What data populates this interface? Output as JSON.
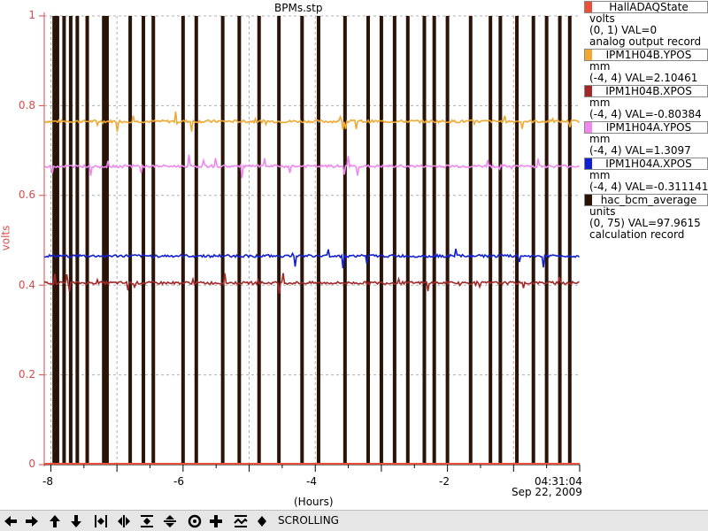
{
  "window": {
    "title": "BPMs.stp"
  },
  "chart_data": {
    "type": "line",
    "title": "BPMs.stp",
    "ylabel": "volts",
    "xlabel": "(Hours)",
    "ylim": [
      0,
      1
    ],
    "xlim": [
      -8.1,
      0
    ],
    "yticks": [
      "0",
      "0.2",
      "0.4",
      "0.6",
      "0.8",
      "1"
    ],
    "xticks": [
      "-8",
      "-6",
      "-4",
      "-2"
    ],
    "time_label": "04:31:04",
    "date_label": "Sep 22, 2009",
    "grid": true,
    "series": [
      {
        "name": "HallADAQState",
        "color": "#e8503a",
        "level": 0.0
      },
      {
        "name": "IPM1H04B.YPOS",
        "color": "#f0a830",
        "level": 0.765
      },
      {
        "name": "IPM1H04B.XPOS",
        "color": "#a02828",
        "level": 0.405
      },
      {
        "name": "IPM1H04A.YPOS",
        "color": "#ee88ee",
        "level": 0.665
      },
      {
        "name": "IPM1H04A.XPOS",
        "color": "#1020d0",
        "level": 0.465
      },
      {
        "name": "hac_bcm_average",
        "color": "#2a1408",
        "spike_x_hours": [
          -7.95,
          -7.9,
          -7.8,
          -7.7,
          -7.6,
          -7.45,
          -7.2,
          -7.15,
          -6.8,
          -6.6,
          -6.45,
          -6.0,
          -5.8,
          -5.4,
          -5.15,
          -4.85,
          -4.55,
          -4.2,
          -3.95,
          -3.55,
          -3.2,
          -3.0,
          -2.8,
          -2.6,
          -2.35,
          -2.2,
          -2.0,
          -1.65,
          -1.35,
          -1.2,
          -0.95,
          -0.7,
          -0.5,
          -0.3,
          -0.15
        ]
      }
    ]
  },
  "legend": [
    {
      "name": "HallADAQState",
      "color": "#e8503a",
      "unit": "volts",
      "range": "(0, 1) VAL=0",
      "desc": "analog output record"
    },
    {
      "name": "IPM1H04B.YPOS",
      "color": "#f0a830",
      "unit": "mm",
      "range": "(-4, 4) VAL=2.10461",
      "desc": ""
    },
    {
      "name": "IPM1H04B.XPOS",
      "color": "#a02828",
      "unit": "mm",
      "range": "(-4, 4) VAL=-0.80384",
      "desc": ""
    },
    {
      "name": "IPM1H04A.YPOS",
      "color": "#ee88ee",
      "unit": "mm",
      "range": "(-4, 4) VAL=1.3097",
      "desc": ""
    },
    {
      "name": "IPM1H04A.XPOS",
      "color": "#1020d0",
      "unit": "mm",
      "range": "(-4, 4) VAL=-0.311141",
      "desc": ""
    },
    {
      "name": "hac_bcm_average",
      "color": "#2a1408",
      "unit": "units",
      "range": "(0, 75) VAL=97.9615",
      "desc": "calculation record"
    }
  ],
  "toolbar": {
    "mode_label": "SCROLLING",
    "buttons": [
      "pan-left-icon",
      "pan-right-icon",
      "pan-up-icon",
      "pan-down-icon",
      "zoom-in-x-icon",
      "zoom-out-x-icon",
      "zoom-in-y-icon",
      "zoom-out-y-icon",
      "auto-scale-icon",
      "add-icon",
      "scroll-mode-icon"
    ]
  }
}
